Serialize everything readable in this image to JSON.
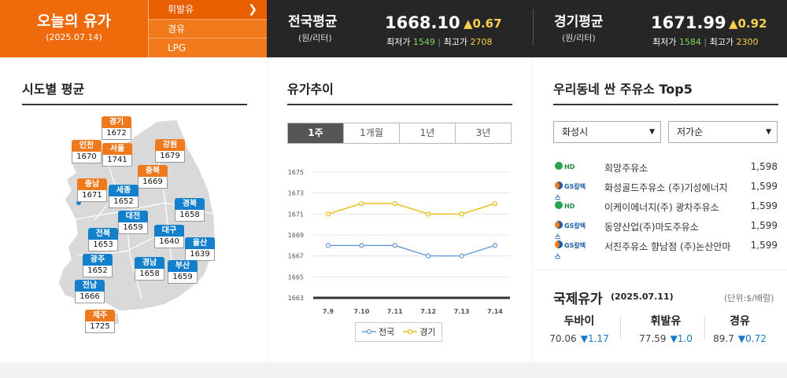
{
  "header": {
    "today_title": "오늘의 유가",
    "today_date": "(2025.07.14)",
    "fuel_menu": [
      {
        "label": "휘발유",
        "active": true
      },
      {
        "label": "경유",
        "active": false
      },
      {
        "label": "LPG",
        "active": false
      }
    ],
    "national": {
      "title": "전국평균",
      "unit": "(원/리터)",
      "price": "1668.10",
      "change": "▲0.67",
      "low_label": "최저가",
      "low": "1549",
      "high_label": "최고가",
      "high": "2708"
    },
    "gyeonggi": {
      "title": "경기평균",
      "unit": "(원/리터)",
      "price": "1671.99",
      "change": "▲0.92",
      "low_label": "최저가",
      "low": "1584",
      "high_label": "최고가",
      "high": "2300"
    },
    "separator": "|"
  },
  "regional": {
    "title": "시도별 평균",
    "regions": [
      {
        "name": "경기",
        "value": "1672",
        "color": "orange"
      },
      {
        "name": "인천",
        "value": "1670",
        "color": "orange"
      },
      {
        "name": "서울",
        "value": "1741",
        "color": "orange"
      },
      {
        "name": "강원",
        "value": "1679",
        "color": "orange"
      },
      {
        "name": "충북",
        "value": "1669",
        "color": "orange"
      },
      {
        "name": "충남",
        "value": "1671",
        "color": "orange"
      },
      {
        "name": "세종",
        "value": "1652",
        "color": "blue"
      },
      {
        "name": "경북",
        "value": "1658",
        "color": "blue"
      },
      {
        "name": "대전",
        "value": "1659",
        "color": "blue"
      },
      {
        "name": "전북",
        "value": "1653",
        "color": "blue"
      },
      {
        "name": "대구",
        "value": "1640",
        "color": "blue"
      },
      {
        "name": "울산",
        "value": "1639",
        "color": "blue"
      },
      {
        "name": "광주",
        "value": "1652",
        "color": "blue"
      },
      {
        "name": "경남",
        "value": "1658",
        "color": "blue"
      },
      {
        "name": "부산",
        "value": "1659",
        "color": "blue"
      },
      {
        "name": "전남",
        "value": "1666",
        "color": "blue"
      },
      {
        "name": "제주",
        "value": "1725",
        "color": "orange"
      }
    ]
  },
  "trend": {
    "title": "유가추이",
    "tabs": [
      {
        "label": "1주",
        "active": true
      },
      {
        "label": "1개월",
        "active": false
      },
      {
        "label": "1년",
        "active": false
      },
      {
        "label": "3년",
        "active": false
      }
    ],
    "legend_national": "전국",
    "legend_gyeonggi": "경기"
  },
  "chart_data": {
    "type": "line",
    "x": [
      "7.9",
      "7.10",
      "7.11",
      "7.12",
      "7.13",
      "7.14"
    ],
    "series": [
      {
        "name": "전국",
        "color": "#6f9fd8",
        "values": [
          1668,
          1668,
          1668,
          1667,
          1667,
          1668
        ]
      },
      {
        "name": "경기",
        "color": "#e8c020",
        "values": [
          1671,
          1672,
          1672,
          1671,
          1671,
          1672
        ]
      }
    ],
    "yticks": [
      1663,
      1665,
      1667,
      1669,
      1671,
      1673,
      1675
    ],
    "ylim": [
      1663,
      1675
    ],
    "grid": true,
    "legend": "bottom"
  },
  "top5": {
    "title": "우리동네 싼 주유소 Top5",
    "city_select": "화성시",
    "sort_select": "저가순",
    "stations": [
      {
        "brand": "hd",
        "brand_label": "HD",
        "name": "희망주유소",
        "price": "1,598"
      },
      {
        "brand": "gs",
        "brand_label": "GS칼텍스",
        "name": "화성골드주유소 (주)기성에너지",
        "price": "1,599"
      },
      {
        "brand": "hd",
        "brand_label": "HD",
        "name": "이케이에너지(주) 광차주유소",
        "price": "1,599"
      },
      {
        "brand": "gs",
        "brand_label": "GS칼텍스",
        "name": "동양산업(주)마도주유소",
        "price": "1,599"
      },
      {
        "brand": "gs",
        "brand_label": "GS칼텍스",
        "name": "서진주유소 향남점 (주)논산안마",
        "price": "1,599"
      }
    ]
  },
  "international": {
    "title": "국제유가",
    "date": "(2025.07.11)",
    "unit": "(단위:$/배럴)",
    "items": [
      {
        "name": "두바이",
        "value": "70.06",
        "change": "▼1.17"
      },
      {
        "name": "휘발유",
        "value": "77.59",
        "change": "▼1.0"
      },
      {
        "name": "경유",
        "value": "89.7",
        "change": "▼0.72"
      }
    ]
  }
}
